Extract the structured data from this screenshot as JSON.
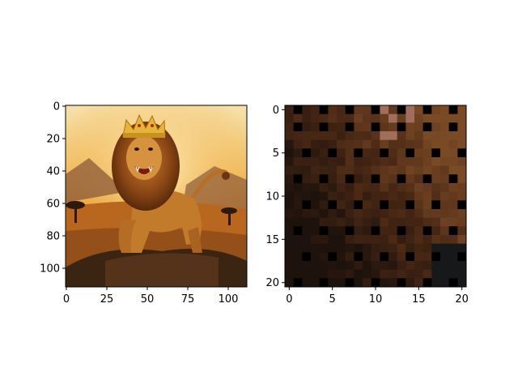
{
  "panels": [
    {
      "id": "left",
      "subject": "lion-with-crown-roaring-at-sunset",
      "x_ticks": [
        "0",
        "25",
        "50",
        "75",
        "100"
      ],
      "y_ticks": [
        "0",
        "20",
        "40",
        "60",
        "80",
        "100"
      ],
      "x_range": [
        0,
        112
      ],
      "y_range": [
        0,
        112
      ]
    },
    {
      "id": "right",
      "subject": "pixelated-zoomed-patch-21x21",
      "x_ticks": [
        "0",
        "5",
        "10",
        "15",
        "20"
      ],
      "y_ticks": [
        "0",
        "5",
        "10",
        "15",
        "20"
      ],
      "x_range": [
        0,
        21
      ],
      "y_range": [
        0,
        21
      ]
    }
  ],
  "colors": {
    "sky_top": "#f1d9a0",
    "sky_glow": "#f0a93b",
    "mane": "#8a4515",
    "body": "#c27a2b",
    "ground": "#3b2412",
    "crown": "#e6b43a",
    "patch_dark": "#1e120c",
    "patch_mid": "#4a2815",
    "patch_light": "#7a4a25",
    "dot": "#000000"
  }
}
